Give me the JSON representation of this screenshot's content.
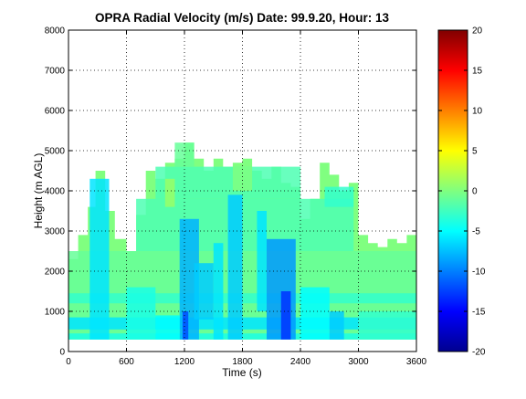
{
  "chart_data": {
    "type": "heatmap",
    "title": "OPRA Radial Velocity (m/s)  Date: 99.9.20, Hour: 13",
    "xlabel": "Time (s)",
    "ylabel": "Height (m AGL)",
    "xlim": [
      0,
      3600
    ],
    "ylim": [
      0,
      8000
    ],
    "x_ticks": [
      "0",
      "600",
      "1200",
      "1800",
      "2400",
      "3000",
      "3600"
    ],
    "y_ticks": [
      "0",
      "1000",
      "2000",
      "3000",
      "4000",
      "5000",
      "6000",
      "7000",
      "8000"
    ],
    "grid": "dotted",
    "colorbar": {
      "colormap": "jet",
      "range": [
        -20,
        20
      ],
      "ticks": [
        "-20",
        "-15",
        "-10",
        "-5",
        "0",
        "5",
        "10",
        "15",
        "20"
      ]
    },
    "data_extent": {
      "time": [
        0,
        3600
      ],
      "height_min": 300
    },
    "echo_top_profile": [
      {
        "t": 0,
        "h": 2300
      },
      {
        "t": 100,
        "h": 2900
      },
      {
        "t": 200,
        "h": 3600
      },
      {
        "t": 280,
        "h": 4500
      },
      {
        "t": 380,
        "h": 3500
      },
      {
        "t": 480,
        "h": 2800
      },
      {
        "t": 600,
        "h": 2500
      },
      {
        "t": 700,
        "h": 3400
      },
      {
        "t": 800,
        "h": 4500
      },
      {
        "t": 900,
        "h": 4300
      },
      {
        "t": 1000,
        "h": 4700
      },
      {
        "t": 1100,
        "h": 4800
      },
      {
        "t": 1200,
        "h": 5200
      },
      {
        "t": 1300,
        "h": 4800
      },
      {
        "t": 1400,
        "h": 4500
      },
      {
        "t": 1500,
        "h": 4800
      },
      {
        "t": 1600,
        "h": 4600
      },
      {
        "t": 1700,
        "h": 4700
      },
      {
        "t": 1800,
        "h": 4800
      },
      {
        "t": 1900,
        "h": 4500
      },
      {
        "t": 2000,
        "h": 4300
      },
      {
        "t": 2100,
        "h": 4600
      },
      {
        "t": 2200,
        "h": 4200
      },
      {
        "t": 2300,
        "h": 4100
      },
      {
        "t": 2400,
        "h": 3300
      },
      {
        "t": 2500,
        "h": 3800
      },
      {
        "t": 2600,
        "h": 4700
      },
      {
        "t": 2700,
        "h": 4400
      },
      {
        "t": 2800,
        "h": 4000
      },
      {
        "t": 2900,
        "h": 4200
      },
      {
        "t": 3000,
        "h": 2900
      },
      {
        "t": 3100,
        "h": 2700
      },
      {
        "t": 3200,
        "h": 2600
      },
      {
        "t": 3300,
        "h": 2800
      },
      {
        "t": 3400,
        "h": 2700
      },
      {
        "t": 3500,
        "h": 2900
      },
      {
        "t": 3600,
        "h": 3000
      }
    ],
    "cells": [
      {
        "t0": 0,
        "t1": 3600,
        "h0": 300,
        "h1": 1800,
        "v": -1
      },
      {
        "t0": 0,
        "t1": 3600,
        "h0": 550,
        "h1": 850,
        "v": -6
      },
      {
        "t0": 0,
        "t1": 3600,
        "h0": 300,
        "h1": 450,
        "v": -4
      },
      {
        "t0": 0,
        "t1": 3600,
        "h0": 1200,
        "h1": 1450,
        "v": -3
      },
      {
        "t0": 0,
        "t1": 3600,
        "h0": 1800,
        "h1": 2500,
        "v": -1
      },
      {
        "t0": 700,
        "t1": 2950,
        "h0": 2500,
        "h1": 3800,
        "v": -2
      },
      {
        "t0": 900,
        "t1": 2400,
        "h0": 3800,
        "h1": 4600,
        "v": -2
      },
      {
        "t0": 1100,
        "t1": 1300,
        "h0": 4600,
        "h1": 5200,
        "v": -1
      },
      {
        "t0": 2650,
        "t1": 2950,
        "h0": 3600,
        "h1": 4100,
        "v": -3
      },
      {
        "t0": 220,
        "t1": 420,
        "h0": 300,
        "h1": 4300,
        "v": -6
      },
      {
        "t0": 1150,
        "t1": 1350,
        "h0": 300,
        "h1": 3300,
        "v": -8
      },
      {
        "t0": 1180,
        "t1": 1240,
        "h0": 300,
        "h1": 1000,
        "v": -12
      },
      {
        "t0": 1300,
        "t1": 1500,
        "h0": 800,
        "h1": 2200,
        "v": -7
      },
      {
        "t0": 1650,
        "t1": 1800,
        "h0": 300,
        "h1": 3900,
        "v": -7
      },
      {
        "t0": 2050,
        "t1": 2350,
        "h0": 300,
        "h1": 2800,
        "v": -9
      },
      {
        "t0": 2200,
        "t1": 2300,
        "h0": 300,
        "h1": 1500,
        "v": -13
      },
      {
        "t0": 1950,
        "t1": 2050,
        "h0": 1000,
        "h1": 3500,
        "v": -6
      },
      {
        "t0": 1500,
        "t1": 1600,
        "h0": 300,
        "h1": 2700,
        "v": -6
      },
      {
        "t0": 2400,
        "t1": 2700,
        "h0": 300,
        "h1": 1600,
        "v": -5
      },
      {
        "t0": 2700,
        "t1": 2850,
        "h0": 300,
        "h1": 1000,
        "v": -7
      },
      {
        "t0": 600,
        "t1": 900,
        "h0": 300,
        "h1": 1600,
        "v": -4
      },
      {
        "t0": 900,
        "t1": 1150,
        "h0": 300,
        "h1": 900,
        "v": -5
      },
      {
        "t0": 3000,
        "t1": 3600,
        "h0": 300,
        "h1": 1000,
        "v": -3
      },
      {
        "t0": 1000,
        "t1": 1100,
        "h0": 3600,
        "h1": 4300,
        "v": 1
      },
      {
        "t0": 1700,
        "t1": 1900,
        "h0": 4000,
        "h1": 4600,
        "v": 0
      }
    ]
  }
}
